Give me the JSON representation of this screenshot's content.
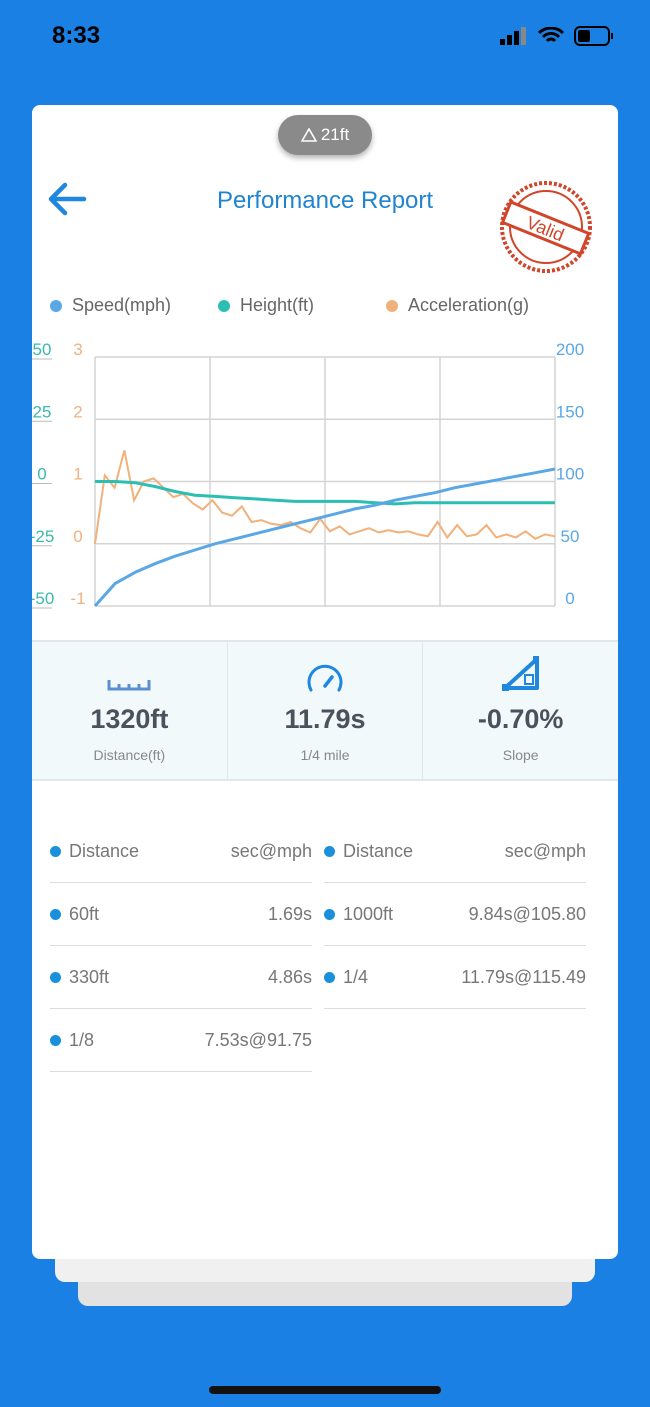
{
  "status_bar": {
    "time": "8:33"
  },
  "header": {
    "altitude_badge": "21ft",
    "title": "Performance Report",
    "stamp_text": "Valid"
  },
  "legend": [
    {
      "label": "Speed(mph)",
      "color": "#5aa7e6"
    },
    {
      "label": "Height(ft)",
      "color": "#2bbfb3"
    },
    {
      "label": "Acceleration(g)",
      "color": "#f2b07a"
    }
  ],
  "chart_data": {
    "type": "line",
    "height_axis": {
      "ticks": [
        "50",
        "25",
        "0",
        "-25",
        "-50"
      ],
      "range": [
        -50,
        50
      ]
    },
    "accel_axis": {
      "ticks": [
        "3",
        "2",
        "1",
        "0",
        "-1"
      ],
      "range": [
        -1,
        3
      ]
    },
    "speed_axis": {
      "ticks": [
        "200",
        "150",
        "100",
        "50",
        "0"
      ],
      "range": [
        0,
        200
      ]
    },
    "series": [
      {
        "name": "Speed(mph)",
        "color": "#5aa7e6",
        "values": [
          0,
          18,
          27,
          34,
          40,
          45,
          50,
          54,
          58,
          62,
          66,
          70,
          74,
          78,
          81,
          85,
          88,
          91,
          95,
          98,
          101,
          104,
          107,
          110
        ]
      },
      {
        "name": "Height(ft)",
        "color": "#2bbfb3",
        "values": [
          0,
          0,
          -0.5,
          -2,
          -4,
          -5.5,
          -6,
          -6.5,
          -7,
          -7.5,
          -8,
          -8,
          -8,
          -8,
          -8.5,
          -9,
          -8.5,
          -8.5,
          -8.5,
          -8.5,
          -8.5,
          -8.5,
          -8.5,
          -8.5
        ]
      },
      {
        "name": "Acceleration(g)",
        "color": "#f2b07a",
        "values": [
          0,
          1.1,
          0.9,
          1.5,
          0.7,
          1.0,
          1.05,
          0.9,
          0.75,
          0.8,
          0.65,
          0.55,
          0.7,
          0.5,
          0.45,
          0.6,
          0.35,
          0.38,
          0.32,
          0.3,
          0.35,
          0.25,
          0.18,
          0.4,
          0.2,
          0.28,
          0.15,
          0.2,
          0.25,
          0.18,
          0.22,
          0.18,
          0.2,
          0.15,
          0.12,
          0.35,
          0.1,
          0.3,
          0.12,
          0.15,
          0.3,
          0.1,
          0.15,
          0.1,
          0.2,
          0.08,
          0.15,
          0.12
        ]
      }
    ]
  },
  "stats": [
    {
      "value": "1320ft",
      "label": "Distance(ft)",
      "icon": "ruler-icon"
    },
    {
      "value": "11.79s",
      "label": "1/4 mile",
      "icon": "speedometer-icon"
    },
    {
      "value": "-0.70%",
      "label": "Slope",
      "icon": "slope-icon"
    }
  ],
  "splits": {
    "left": [
      {
        "k": "Distance",
        "v": "sec@mph"
      },
      {
        "k": "60ft",
        "v": "1.69s"
      },
      {
        "k": "330ft",
        "v": "4.86s"
      },
      {
        "k": "1/8",
        "v": "7.53s@91.75"
      }
    ],
    "right": [
      {
        "k": "Distance",
        "v": "sec@mph"
      },
      {
        "k": "1000ft",
        "v": "9.84s@105.80"
      },
      {
        "k": "1/4",
        "v": "11.79s@115.49"
      }
    ]
  }
}
